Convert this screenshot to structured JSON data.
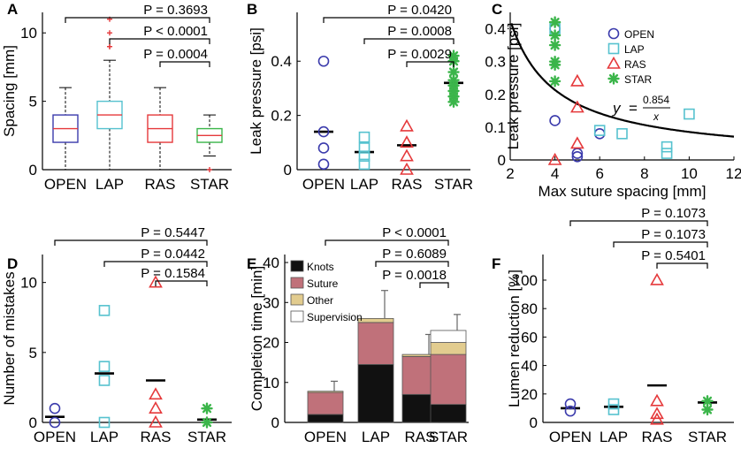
{
  "colors": {
    "OPEN": "#3b3bac",
    "LAP": "#56c2cf",
    "RAS": "#e5393b",
    "STAR": "#3bb54a",
    "knots": "#111111",
    "suture": "#c0717a",
    "other": "#e2cc8f",
    "supervision": "#ffffff"
  },
  "chart_data": [
    {
      "panel": "A",
      "type": "boxplot",
      "ylabel": "Spacing [mm]",
      "ylim": [
        0,
        11.5
      ],
      "yticks": [
        "0",
        "5",
        "10"
      ],
      "yticks_values": [
        0,
        5,
        10
      ],
      "categories": [
        "OPEN",
        "LAP",
        "RAS",
        "STAR"
      ],
      "boxes": [
        {
          "name": "OPEN",
          "whisker_low": 0,
          "q1": 2,
          "median": 3,
          "q3": 4,
          "whisker_high": 6,
          "outliers": []
        },
        {
          "name": "LAP",
          "whisker_low": 0,
          "q1": 3,
          "median": 4,
          "q3": 5,
          "whisker_high": 8,
          "outliers": [
            9,
            9,
            10,
            11
          ]
        },
        {
          "name": "RAS",
          "whisker_low": 0,
          "q1": 2,
          "median": 3,
          "q3": 4,
          "whisker_high": 6,
          "outliers": []
        },
        {
          "name": "STAR",
          "whisker_low": 1,
          "q1": 2,
          "median": 2.5,
          "q3": 3,
          "whisker_high": 4,
          "outliers": [
            0
          ]
        }
      ],
      "comparisons": [
        {
          "from": "OPEN",
          "to": "STAR",
          "label": "P = 0.3693"
        },
        {
          "from": "LAP",
          "to": "STAR",
          "label": "P < 0.0001"
        },
        {
          "from": "RAS",
          "to": "STAR",
          "label": "P = 0.0004"
        }
      ]
    },
    {
      "panel": "B",
      "type": "scatter",
      "ylabel": "Leak pressure [psi]",
      "ylim": [
        0,
        0.58
      ],
      "yticks": [
        "0",
        "0.2",
        "0.4"
      ],
      "yticks_values": [
        0,
        0.2,
        0.4
      ],
      "categories": [
        "OPEN",
        "LAP",
        "RAS",
        "STAR"
      ],
      "series": [
        {
          "name": "OPEN",
          "marker": "circle",
          "mean": 0.14,
          "points": [
            0.4,
            0.14,
            0.08,
            0.02
          ]
        },
        {
          "name": "LAP",
          "marker": "square",
          "mean": 0.065,
          "points": [
            0.12,
            0.08,
            0.05,
            0.02
          ]
        },
        {
          "name": "RAS",
          "marker": "triangle",
          "mean": 0.09,
          "points": [
            0.16,
            0.1,
            0.05,
            0.0
          ]
        },
        {
          "name": "STAR",
          "marker": "star",
          "mean": 0.32,
          "points": [
            0.42,
            0.4,
            0.36,
            0.33,
            0.31,
            0.29,
            0.27,
            0.25
          ]
        }
      ],
      "comparisons": [
        {
          "from": "OPEN",
          "to": "STAR",
          "label": "P = 0.0420"
        },
        {
          "from": "LAP",
          "to": "STAR",
          "label": "P = 0.0008"
        },
        {
          "from": "RAS",
          "to": "STAR",
          "label": "P = 0.0029"
        }
      ]
    },
    {
      "panel": "C",
      "type": "scatter",
      "xlabel": "Max suture spacing [mm]",
      "ylabel": "Leak pressure [psi]",
      "xlim": [
        2,
        12
      ],
      "ylim": [
        0,
        0.45
      ],
      "xticks": [
        "2",
        "4",
        "6",
        "8",
        "10",
        "12"
      ],
      "xticks_values": [
        2,
        4,
        6,
        8,
        10,
        12
      ],
      "yticks": [
        "0",
        "0.1",
        "0.2",
        "0.3",
        "0.4"
      ],
      "yticks_values": [
        0,
        0.1,
        0.2,
        0.3,
        0.4
      ],
      "series": [
        {
          "name": "OPEN",
          "marker": "circle",
          "points": [
            [
              4,
              0.4
            ],
            [
              4,
              0.12
            ],
            [
              5,
              0.02
            ],
            [
              5,
              0.01
            ],
            [
              6,
              0.08
            ]
          ]
        },
        {
          "name": "LAP",
          "marker": "square",
          "points": [
            [
              4,
              0.4
            ],
            [
              6,
              0.09
            ],
            [
              7,
              0.08
            ],
            [
              9,
              0.04
            ],
            [
              9,
              0.02
            ],
            [
              10,
              0.14
            ]
          ]
        },
        {
          "name": "RAS",
          "marker": "triangle",
          "points": [
            [
              4,
              0.0
            ],
            [
              5,
              0.24
            ],
            [
              5,
              0.16
            ],
            [
              5,
              0.05
            ]
          ]
        },
        {
          "name": "STAR",
          "marker": "star",
          "points": [
            [
              4,
              0.42
            ],
            [
              4,
              0.38
            ],
            [
              4,
              0.35
            ],
            [
              4,
              0.3
            ],
            [
              4,
              0.29
            ],
            [
              4,
              0.24
            ]
          ]
        }
      ],
      "fit": {
        "coefficient": 0.854,
        "y_label": "y",
        "equals": "=",
        "numerator": "0.854",
        "denominator": "x"
      },
      "legend": [
        "OPEN",
        "LAP",
        "RAS",
        "STAR"
      ]
    },
    {
      "panel": "D",
      "type": "scatter",
      "ylabel": "Number of mistakes",
      "ylim": [
        0,
        12
      ],
      "yticks": [
        "0",
        "5",
        "10"
      ],
      "yticks_values": [
        0,
        5,
        10
      ],
      "categories": [
        "OPEN",
        "LAP",
        "RAS",
        "STAR"
      ],
      "series": [
        {
          "name": "OPEN",
          "marker": "circle",
          "mean": 0.4,
          "points": [
            1,
            0
          ]
        },
        {
          "name": "LAP",
          "marker": "square",
          "mean": 3.5,
          "points": [
            8,
            4,
            3,
            0
          ]
        },
        {
          "name": "RAS",
          "marker": "triangle",
          "mean": 3.0,
          "points": [
            10,
            2,
            1,
            0
          ]
        },
        {
          "name": "STAR",
          "marker": "star",
          "mean": 0.2,
          "points": [
            1,
            0
          ]
        }
      ],
      "comparisons": [
        {
          "from": "OPEN",
          "to": "STAR",
          "label": "P = 0.5447"
        },
        {
          "from": "LAP",
          "to": "STAR",
          "label": "P = 0.0442"
        },
        {
          "from": "RAS",
          "to": "STAR",
          "label": "P = 0.1584"
        }
      ]
    },
    {
      "panel": "E",
      "type": "bar",
      "stacked": true,
      "ylabel": "Completion time [min]",
      "ylim": [
        0,
        42
      ],
      "yticks": [
        "0",
        "10",
        "20",
        "30",
        "40"
      ],
      "yticks_values": [
        0,
        10,
        20,
        30,
        40
      ],
      "categories": [
        "OPEN",
        "LAP",
        "RAS",
        "STAR"
      ],
      "series": [
        {
          "name": "Knots",
          "values": [
            2,
            14.5,
            7,
            4.5
          ]
        },
        {
          "name": "Suture",
          "values": [
            5.5,
            10.5,
            9.5,
            12.5
          ]
        },
        {
          "name": "Other",
          "values": [
            0.3,
            1,
            0.5,
            3
          ]
        },
        {
          "name": "Supervision",
          "values": [
            0,
            0,
            0,
            3
          ]
        }
      ],
      "errors": [
        2.5,
        7,
        5,
        4
      ],
      "legend": [
        "Knots",
        "Suture",
        "Other",
        "Supervision"
      ],
      "comparisons": [
        {
          "from": "OPEN",
          "to": "STAR",
          "label": "P < 0.0001"
        },
        {
          "from": "LAP",
          "to": "STAR",
          "label": "P = 0.6089"
        },
        {
          "from": "RAS",
          "to": "STAR",
          "label": "P = 0.0018"
        }
      ]
    },
    {
      "panel": "F",
      "type": "scatter",
      "ylabel": "Lumen reduction [%]",
      "ylim": [
        0,
        118
      ],
      "yticks": [
        "0",
        "20",
        "40",
        "60",
        "80",
        "100"
      ],
      "yticks_values": [
        0,
        20,
        40,
        60,
        80,
        100
      ],
      "categories": [
        "OPEN",
        "LAP",
        "RAS",
        "STAR"
      ],
      "series": [
        {
          "name": "OPEN",
          "marker": "circle",
          "mean": 10,
          "points": [
            13,
            8
          ]
        },
        {
          "name": "LAP",
          "marker": "square",
          "mean": 11,
          "points": [
            13,
            9
          ]
        },
        {
          "name": "RAS",
          "marker": "triangle",
          "mean": 26,
          "points": [
            100,
            15,
            6,
            2
          ]
        },
        {
          "name": "STAR",
          "marker": "star",
          "mean": 14,
          "points": [
            15,
            9
          ]
        }
      ],
      "comparisons": [
        {
          "from": "OPEN",
          "to": "STAR",
          "label": "P = 0.1073"
        },
        {
          "from": "LAP",
          "to": "STAR",
          "label": "P = 0.1073"
        },
        {
          "from": "RAS",
          "to": "STAR",
          "label": "P = 0.5401"
        }
      ]
    }
  ]
}
